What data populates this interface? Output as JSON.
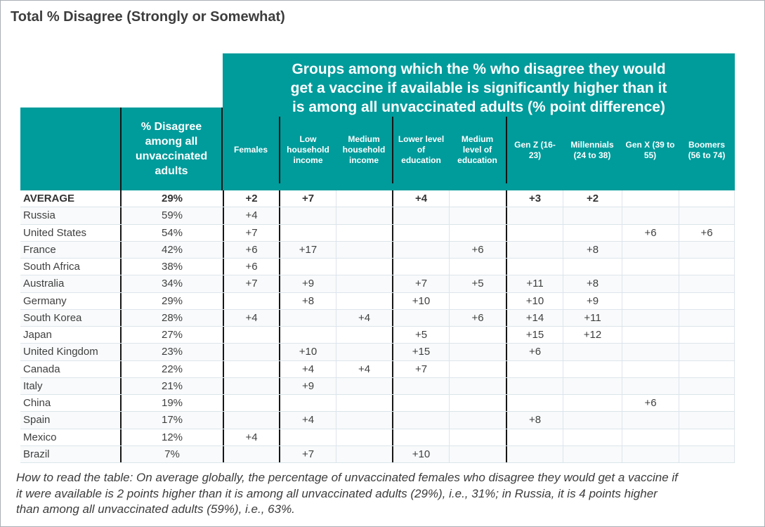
{
  "page": {
    "title": "Total % Disagree (Strongly or Somewhat)"
  },
  "banner": {
    "line1": "Groups among which the % who disagree they would",
    "line2": "get a vaccine if available is significantly higher than it",
    "line3": "is among all unvaccinated adults (% point difference)"
  },
  "footer": {
    "text": "How to read the table: On average globally, the percentage of unvaccinated females who disagree they would get a vaccine if it were available is 2 points higher than it is among all unvaccinated adults (29%), i.e., 31%; in Russia, it is 4 points higher than among all unvaccinated adults (59%), i.e., 63%."
  },
  "colors": {
    "teal": "#009b9b",
    "text_dark": "#3d3d3d",
    "gridline": "#dce5eb",
    "group_divider": "#161616"
  },
  "chart_data": {
    "type": "table",
    "title": "Total % Disagree (Strongly or Somewhat)",
    "group_header": "Groups among which the % who disagree they would get a vaccine if available is significantly higher than it is among all unvaccinated adults (% point difference)",
    "pct_header": "% Disagree among all unvaccinated adults",
    "group_columns": [
      "Females",
      "Low household income",
      "Medium household income",
      "Lower level of education",
      "Medium level of education",
      "Gen Z (16-23)",
      "Millennials (24 to 38)",
      "Gen X (39 to 55)",
      "Boomers (56 to 74)"
    ],
    "rows": [
      {
        "country": "AVERAGE",
        "pct": "29%",
        "bold": true,
        "values": [
          "+2",
          "+7",
          "",
          "+4",
          "",
          "+3",
          "+2",
          "",
          ""
        ]
      },
      {
        "country": "Russia",
        "pct": "59%",
        "bold": false,
        "values": [
          "+4",
          "",
          "",
          "",
          "",
          "",
          "",
          "",
          ""
        ]
      },
      {
        "country": "United States",
        "pct": "54%",
        "bold": false,
        "values": [
          "+7",
          "",
          "",
          "",
          "",
          "",
          "",
          "+6",
          "+6"
        ]
      },
      {
        "country": "France",
        "pct": "42%",
        "bold": false,
        "values": [
          "+6",
          "+17",
          "",
          "",
          "+6",
          "",
          "+8",
          "",
          ""
        ]
      },
      {
        "country": "South Africa",
        "pct": "38%",
        "bold": false,
        "values": [
          "+6",
          "",
          "",
          "",
          "",
          "",
          "",
          "",
          ""
        ]
      },
      {
        "country": "Australia",
        "pct": "34%",
        "bold": false,
        "values": [
          "+7",
          "+9",
          "",
          "+7",
          "+5",
          "+11",
          "+8",
          "",
          ""
        ]
      },
      {
        "country": "Germany",
        "pct": "29%",
        "bold": false,
        "values": [
          "",
          "+8",
          "",
          "+10",
          "",
          "+10",
          "+9",
          "",
          ""
        ]
      },
      {
        "country": "South Korea",
        "pct": "28%",
        "bold": false,
        "values": [
          "+4",
          "",
          "+4",
          "",
          "+6",
          "+14",
          "+11",
          "",
          ""
        ]
      },
      {
        "country": "Japan",
        "pct": "27%",
        "bold": false,
        "values": [
          "",
          "",
          "",
          "+5",
          "",
          "+15",
          "+12",
          "",
          ""
        ]
      },
      {
        "country": "United Kingdom",
        "pct": "23%",
        "bold": false,
        "values": [
          "",
          "+10",
          "",
          "+15",
          "",
          "+6",
          "",
          "",
          ""
        ]
      },
      {
        "country": "Canada",
        "pct": "22%",
        "bold": false,
        "values": [
          "",
          "+4",
          "+4",
          "+7",
          "",
          "",
          "",
          "",
          ""
        ]
      },
      {
        "country": "Italy",
        "pct": "21%",
        "bold": false,
        "values": [
          "",
          "+9",
          "",
          "",
          "",
          "",
          "",
          "",
          ""
        ]
      },
      {
        "country": "China",
        "pct": "19%",
        "bold": false,
        "values": [
          "",
          "",
          "",
          "",
          "",
          "",
          "",
          "+6",
          ""
        ]
      },
      {
        "country": "Spain",
        "pct": "17%",
        "bold": false,
        "values": [
          "",
          "+4",
          "",
          "",
          "",
          "+8",
          "",
          "",
          ""
        ]
      },
      {
        "country": "Mexico",
        "pct": "12%",
        "bold": false,
        "values": [
          "+4",
          "",
          "",
          "",
          "",
          "",
          "",
          "",
          ""
        ]
      },
      {
        "country": "Brazil",
        "pct": "7%",
        "bold": false,
        "values": [
          "",
          "+7",
          "",
          "+10",
          "",
          "",
          "",
          "",
          ""
        ]
      }
    ]
  }
}
